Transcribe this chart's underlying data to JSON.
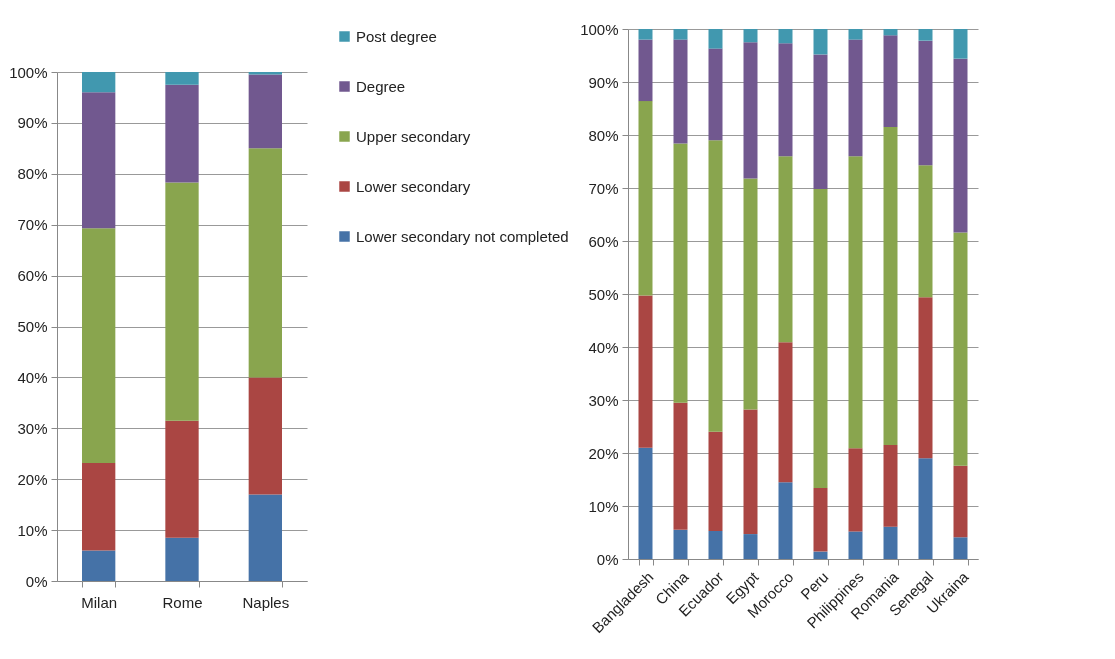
{
  "chart_data": [
    {
      "type": "bar",
      "stacked": true,
      "categories": [
        "Milan",
        "Rome",
        "Naples"
      ],
      "series": [
        {
          "name": "Lower secondary not completed",
          "color": "#4572a7",
          "values": [
            6,
            8.5,
            17
          ]
        },
        {
          "name": "Lower secondary",
          "color": "#aa4643",
          "values": [
            17.2,
            23,
            23
          ]
        },
        {
          "name": "Upper secondary",
          "color": "#89a54e",
          "values": [
            46.1,
            46.8,
            45
          ]
        },
        {
          "name": "Degree",
          "color": "#71588f",
          "values": [
            26.7,
            19.2,
            14.5
          ]
        },
        {
          "name": "Post degree",
          "color": "#4198af",
          "values": [
            4,
            2.5,
            0.5
          ]
        }
      ],
      "ylim": [
        0,
        100
      ],
      "yticks": [
        {
          "value": 0,
          "label": "0%"
        },
        {
          "value": 10,
          "label": "10%"
        },
        {
          "value": 20,
          "label": "20%"
        },
        {
          "value": 30,
          "label": "30%"
        },
        {
          "value": 40,
          "label": "40%"
        },
        {
          "value": 50,
          "label": "50%"
        },
        {
          "value": 60,
          "label": "60%"
        },
        {
          "value": 70,
          "label": "70%"
        },
        {
          "value": 80,
          "label": "80%"
        },
        {
          "value": 90,
          "label": "90%"
        },
        {
          "value": 100,
          "label": "100%"
        }
      ],
      "grid": "y",
      "legend": "right"
    },
    {
      "type": "bar",
      "stacked": true,
      "categories": [
        "Bangladesh",
        "China",
        "Ecuador",
        "Egypt",
        "Morocco",
        "Peru",
        "Philippines",
        "Romania",
        "Senegal",
        "Ukraina"
      ],
      "series": [
        {
          "color": "#4572a7",
          "values": [
            21,
            5.5,
            5.3,
            4.7,
            14.5,
            1.4,
            5.2,
            6.1,
            19,
            4.1
          ]
        },
        {
          "color": "#aa4643",
          "values": [
            28.7,
            24,
            18.7,
            23.5,
            26.4,
            12,
            15.7,
            15.4,
            30.4,
            13.5
          ]
        },
        {
          "color": "#89a54e",
          "values": [
            36.7,
            48.9,
            55,
            43.6,
            35.1,
            56.4,
            55.1,
            60,
            24.9,
            44
          ]
        },
        {
          "color": "#71588f",
          "values": [
            11.6,
            19.6,
            17.3,
            25.7,
            21.3,
            25.4,
            22,
            17.3,
            23.5,
            32.8
          ]
        },
        {
          "color": "#4198af",
          "values": [
            2,
            2,
            3.7,
            2.5,
            2.7,
            4.8,
            2,
            1.2,
            2.2,
            5.6
          ]
        }
      ],
      "ylim": [
        0,
        100
      ],
      "yticks": [
        {
          "value": 0,
          "label": "0%"
        },
        {
          "value": 10,
          "label": "10%"
        },
        {
          "value": 20,
          "label": "20%"
        },
        {
          "value": 30,
          "label": "30%"
        },
        {
          "value": 40,
          "label": "40%"
        },
        {
          "value": 50,
          "label": "50%"
        },
        {
          "value": 60,
          "label": "60%"
        },
        {
          "value": 70,
          "label": "70%"
        },
        {
          "value": 80,
          "label": "80%"
        },
        {
          "value": 90,
          "label": "90%"
        },
        {
          "value": 100,
          "label": "100%"
        }
      ],
      "grid": "y",
      "legend": false
    }
  ]
}
